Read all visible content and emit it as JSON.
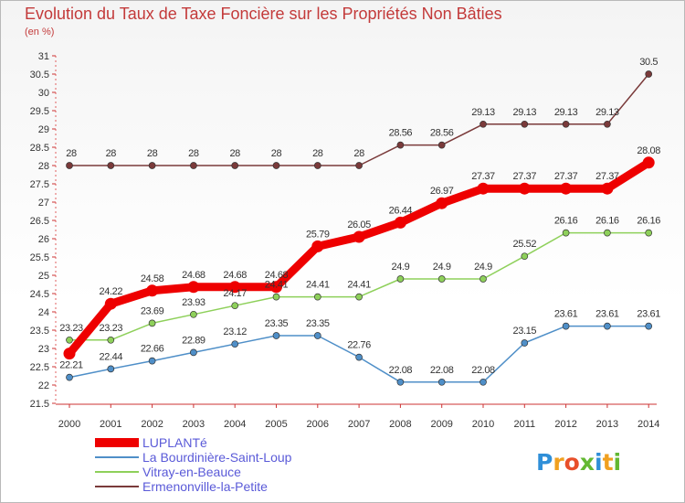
{
  "title": "Evolution du Taux de Taxe Foncière sur les Propriétés Non Bâties",
  "unit_label": "(en %)",
  "logo": {
    "text": "Proxiti",
    "letters": [
      {
        "ch": "P",
        "color": "#2f8fd8"
      },
      {
        "ch": "r",
        "color": "#f0a020"
      },
      {
        "ch": "o",
        "color": "#e84f2a"
      },
      {
        "ch": "x",
        "color": "#63b832"
      },
      {
        "ch": "i",
        "color": "#2f8fd8"
      },
      {
        "ch": "t",
        "color": "#f0a020"
      },
      {
        "ch": "i",
        "color": "#63b832"
      }
    ]
  },
  "chart_data": {
    "type": "line",
    "x": [
      "2000",
      "2001",
      "2002",
      "2003",
      "2004",
      "2005",
      "2006",
      "2007",
      "2008",
      "2009",
      "2010",
      "2011",
      "2012",
      "2013",
      "2014"
    ],
    "ylim": [
      21.5,
      31
    ],
    "yticks": [
      "21.5",
      "22",
      "22.5",
      "23",
      "23.5",
      "24",
      "24.5",
      "25",
      "25.5",
      "26",
      "26.5",
      "27",
      "27.5",
      "28",
      "28.5",
      "29",
      "29.5",
      "30",
      "30.5",
      "31"
    ],
    "grid": false,
    "legend_position": "bottom-left",
    "series": [
      {
        "name": "LUPLANTé",
        "color": "#ee0000",
        "values": [
          22.86,
          24.22,
          24.58,
          24.68,
          24.68,
          24.68,
          25.79,
          26.05,
          26.44,
          26.97,
          27.37,
          27.37,
          27.37,
          27.37,
          28.08
        ],
        "labels": [
          "",
          "24.22",
          "24.58",
          "24.68",
          "24.68",
          "24.68",
          "25.79",
          "26.05",
          "26.44",
          "26.97",
          "27.37",
          "27.37",
          "27.37",
          "27.37",
          "28.08"
        ]
      },
      {
        "name": "La Bourdinière-Saint-Loup",
        "color": "#4f8fc8",
        "values": [
          22.21,
          22.44,
          22.66,
          22.89,
          23.12,
          23.35,
          23.35,
          22.76,
          22.08,
          22.08,
          22.08,
          23.15,
          23.61,
          23.61,
          23.61
        ],
        "labels": [
          "22.21",
          "22.44",
          "22.66",
          "22.89",
          "23.12",
          "23.35",
          "23.35",
          "22.76",
          "22.08",
          "22.08",
          "22.08",
          "23.15",
          "23.61",
          "23.61",
          "23.61"
        ]
      },
      {
        "name": "Vitray-en-Beauce",
        "color": "#8ed05a",
        "values": [
          23.23,
          23.23,
          23.69,
          23.93,
          24.17,
          24.41,
          24.41,
          24.41,
          24.9,
          24.9,
          24.9,
          25.52,
          26.16,
          26.16,
          26.16
        ],
        "labels": [
          "23.23",
          "23.23",
          "23.69",
          "23.93",
          "24.17",
          "24.41",
          "24.41",
          "24.41",
          "24.9",
          "24.9",
          "24.9",
          "25.52",
          "26.16",
          "26.16",
          "26.16"
        ]
      },
      {
        "name": "Ermenonville-la-Petite",
        "color": "#7a3a3a",
        "values": [
          28,
          28,
          28,
          28,
          28,
          28,
          28,
          28,
          28.56,
          28.56,
          29.13,
          29.13,
          29.13,
          29.13,
          30.5
        ],
        "labels": [
          "28",
          "28",
          "28",
          "28",
          "28",
          "28",
          "28",
          "28",
          "28.56",
          "28.56",
          "29.13",
          "29.13",
          "29.13",
          "29.13",
          "30.5"
        ]
      }
    ]
  }
}
